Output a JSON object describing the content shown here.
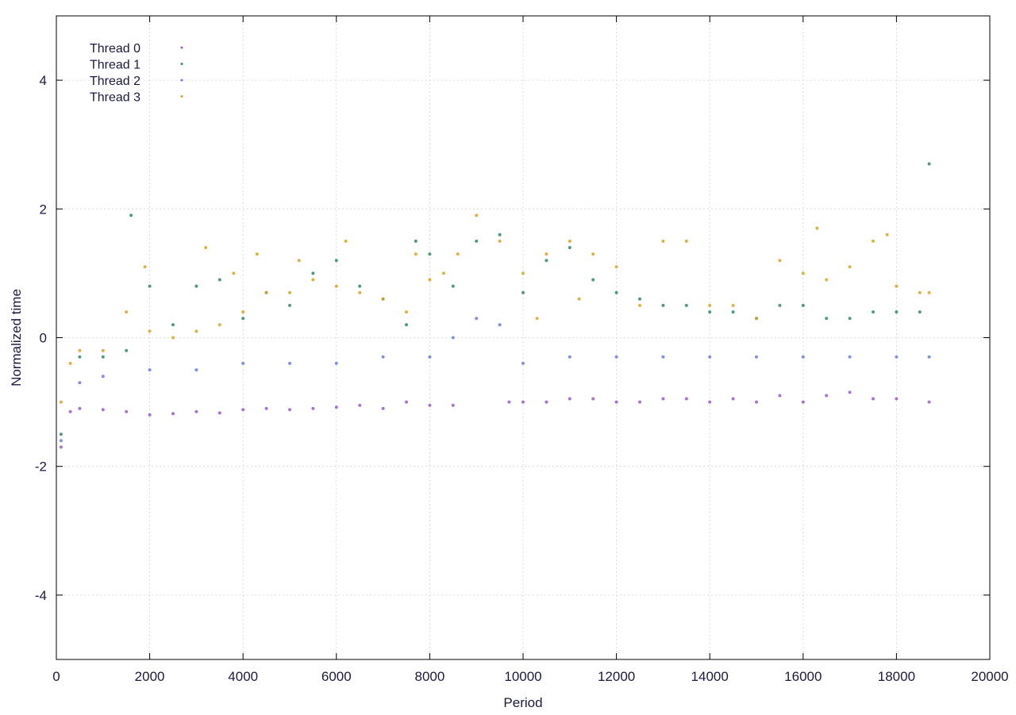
{
  "chart_data": {
    "type": "scatter",
    "title": "",
    "xlabel": "Period",
    "ylabel": "Normalized time",
    "xlim": [
      0,
      20000
    ],
    "ylim": [
      -5,
      5
    ],
    "xticks": [
      0,
      2000,
      4000,
      6000,
      8000,
      10000,
      12000,
      14000,
      16000,
      18000,
      20000
    ],
    "yticks": [
      -4,
      -2,
      0,
      2,
      4
    ],
    "xtick_labels": [
      "0",
      "2000",
      "4000",
      "6000",
      "8000",
      "10000",
      "12000",
      "14000",
      "16000",
      "18000",
      "20000"
    ],
    "ytick_labels": [
      "-4",
      "-2",
      "0",
      "2",
      "4"
    ],
    "grid": true,
    "legend_position": "top-left",
    "series": [
      {
        "name": "Thread 0",
        "color": "#9b59d0",
        "x": [
          100,
          300,
          500,
          1000,
          1500,
          2000,
          2500,
          3000,
          3500,
          4000,
          4500,
          5000,
          5500,
          6000,
          6500,
          7000,
          7500,
          8000,
          8500,
          9700,
          10000,
          10500,
          11000,
          11500,
          12000,
          12500,
          13000,
          13500,
          14000,
          14500,
          15000,
          15500,
          16000,
          16500,
          17000,
          17500,
          18000,
          18700
        ],
        "y": [
          -1.7,
          -1.15,
          -1.1,
          -1.12,
          -1.15,
          -1.2,
          -1.18,
          -1.15,
          -1.17,
          -1.12,
          -1.1,
          -1.12,
          -1.1,
          -1.08,
          -1.05,
          -1.1,
          -1.0,
          -1.05,
          -1.05,
          -1.0,
          -1.0,
          -1.0,
          -0.95,
          -0.95,
          -1.0,
          -1.0,
          -0.95,
          -0.95,
          -1.0,
          -0.95,
          -1.0,
          -0.9,
          -1.0,
          -0.9,
          -0.85,
          -0.95,
          -0.95,
          -1.0
        ]
      },
      {
        "name": "Thread 1",
        "color": "#2e8b6b",
        "x": [
          100,
          500,
          1000,
          1500,
          1600,
          2000,
          2500,
          3000,
          3500,
          4000,
          4500,
          5000,
          5500,
          6000,
          6500,
          7000,
          7500,
          7700,
          8000,
          8500,
          9000,
          9500,
          10000,
          10500,
          11000,
          11500,
          12000,
          12500,
          13000,
          13500,
          14000,
          14500,
          15000,
          15500,
          16000,
          16500,
          17000,
          17500,
          18000,
          18500,
          18700
        ],
        "y": [
          -1.5,
          -0.3,
          -0.3,
          -0.2,
          1.9,
          0.8,
          0.2,
          0.8,
          0.9,
          0.3,
          0.7,
          0.5,
          1.0,
          1.2,
          0.8,
          0.6,
          0.2,
          1.5,
          1.3,
          0.8,
          1.5,
          1.6,
          0.7,
          1.2,
          1.4,
          0.9,
          0.7,
          0.6,
          0.5,
          0.5,
          0.4,
          0.4,
          0.3,
          0.5,
          0.5,
          0.3,
          0.3,
          0.4,
          0.4,
          0.4,
          2.7
        ]
      },
      {
        "name": "Thread 2",
        "color": "#6a7de8",
        "x": [
          100,
          500,
          1000,
          2000,
          3000,
          4000,
          5000,
          6000,
          7000,
          8000,
          8500,
          9000,
          9500,
          10000,
          11000,
          12000,
          13000,
          14000,
          15000,
          16000,
          17000,
          18000,
          18700
        ],
        "y": [
          -1.6,
          -0.7,
          -0.6,
          -0.5,
          -0.5,
          -0.4,
          -0.4,
          -0.4,
          -0.3,
          -0.3,
          0.0,
          0.3,
          0.2,
          -0.4,
          -0.3,
          -0.3,
          -0.3,
          -0.3,
          -0.3,
          -0.3,
          -0.3,
          -0.3,
          -0.3
        ]
      },
      {
        "name": "Thread 3",
        "color": "#d9a520",
        "x": [
          100,
          300,
          500,
          1000,
          1500,
          1900,
          2000,
          2500,
          3000,
          3200,
          3500,
          3800,
          4000,
          4300,
          4500,
          5000,
          5200,
          5500,
          6000,
          6200,
          6500,
          7000,
          7500,
          7700,
          8000,
          8300,
          8600,
          9000,
          9500,
          10000,
          10300,
          10500,
          11000,
          11200,
          11500,
          12000,
          12500,
          13000,
          13500,
          14000,
          14500,
          15000,
          15500,
          16000,
          16300,
          16500,
          17000,
          17500,
          17800,
          18000,
          18500,
          18700
        ],
        "y": [
          -1.0,
          -0.4,
          -0.2,
          -0.2,
          0.4,
          1.1,
          0.1,
          0.0,
          0.1,
          1.4,
          0.2,
          1.0,
          0.4,
          1.3,
          0.7,
          0.7,
          1.2,
          0.9,
          0.8,
          1.5,
          0.7,
          0.6,
          0.4,
          1.3,
          0.9,
          1.0,
          1.3,
          1.9,
          1.5,
          1.0,
          0.3,
          1.3,
          1.5,
          0.6,
          1.3,
          1.1,
          0.5,
          1.5,
          1.5,
          0.5,
          0.5,
          0.3,
          1.2,
          1.0,
          1.7,
          0.9,
          1.1,
          1.5,
          1.6,
          0.8,
          0.7,
          0.7
        ]
      }
    ]
  }
}
